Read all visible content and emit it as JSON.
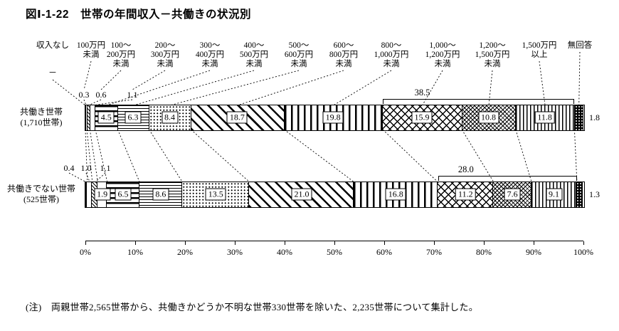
{
  "title": "図Ⅰ-1-22　世帯の年間収入－共働きの状況別",
  "note": "(注)　両親世帯2,565世帯から、共働きかどうか不明な世帯330世帯を除いた、2,235世帯について集計した。",
  "chart_data": {
    "type": "bar",
    "stacked": true,
    "orientation": "horizontal",
    "unit": "%",
    "title": "図Ⅰ-1-22　世帯の年間収入－共働きの状況別",
    "categories": [
      {
        "label": "収入なし",
        "lines": [
          "収入なし"
        ]
      },
      {
        "label": "100万円未満",
        "lines": [
          "100万円",
          "未満"
        ]
      },
      {
        "label": "100～200万円未満",
        "lines": [
          "100～",
          "200万円",
          "未満"
        ]
      },
      {
        "label": "200～300万円未満",
        "lines": [
          "200～",
          "300万円",
          "未満"
        ]
      },
      {
        "label": "300～400万円未満",
        "lines": [
          "300～",
          "400万円",
          "未満"
        ]
      },
      {
        "label": "400～500万円未満",
        "lines": [
          "400～",
          "500万円",
          "未満"
        ]
      },
      {
        "label": "500～600万円未満",
        "lines": [
          "500～",
          "600万円",
          "未満"
        ]
      },
      {
        "label": "600～800万円未満",
        "lines": [
          "600～",
          "800万円",
          "未満"
        ]
      },
      {
        "label": "800～1,000万円未満",
        "lines": [
          "800～",
          "1,000万円",
          "未満"
        ]
      },
      {
        "label": "1,000～1,200万円未満",
        "lines": [
          "1,000～",
          "1,200万円",
          "未満"
        ]
      },
      {
        "label": "1,200～1,500万円未満",
        "lines": [
          "1,200～",
          "1,500万円",
          "未満"
        ]
      },
      {
        "label": "1,500万円以上",
        "lines": [
          "1,500万円",
          "以上"
        ]
      },
      {
        "label": "無回答",
        "lines": [
          "無回答"
        ]
      }
    ],
    "series": [
      {
        "name": "共働き世帯",
        "count": "(1,710世帯)",
        "values": [
          0,
          0.3,
          0.6,
          1.1,
          4.5,
          6.3,
          8.4,
          18.7,
          19.8,
          15.9,
          10.8,
          11.8,
          1.8
        ],
        "displays": [
          "－",
          "0.3",
          "0.6",
          "1.1",
          "4.5",
          "6.3",
          "8.4",
          "18.7",
          "19.8",
          "15.9",
          "10.8",
          "11.8",
          "1.8"
        ],
        "bracket": {
          "label": "38.5",
          "from": 9,
          "to": 12
        }
      },
      {
        "name": "共働きでない世帯",
        "count": "(525世帯)",
        "values": [
          0.4,
          1.0,
          1.1,
          1.9,
          6.5,
          8.6,
          13.5,
          21.0,
          16.8,
          11.2,
          7.6,
          9.1,
          1.3
        ],
        "displays": [
          "0.4",
          "1.0",
          "1.1",
          "1.9",
          "6.5",
          "8.6",
          "13.5",
          "21.0",
          "16.8",
          "11.2",
          "7.6",
          "9.1",
          "1.3"
        ],
        "bracket": {
          "label": "28.0",
          "from": 9,
          "to": 12
        }
      }
    ],
    "x_axis": {
      "min": 0,
      "max": 100,
      "tick_labels": [
        "0%",
        "10%",
        "20%",
        "30%",
        "40%",
        "50%",
        "60%",
        "70%",
        "80%",
        "90%",
        "100%"
      ]
    }
  }
}
